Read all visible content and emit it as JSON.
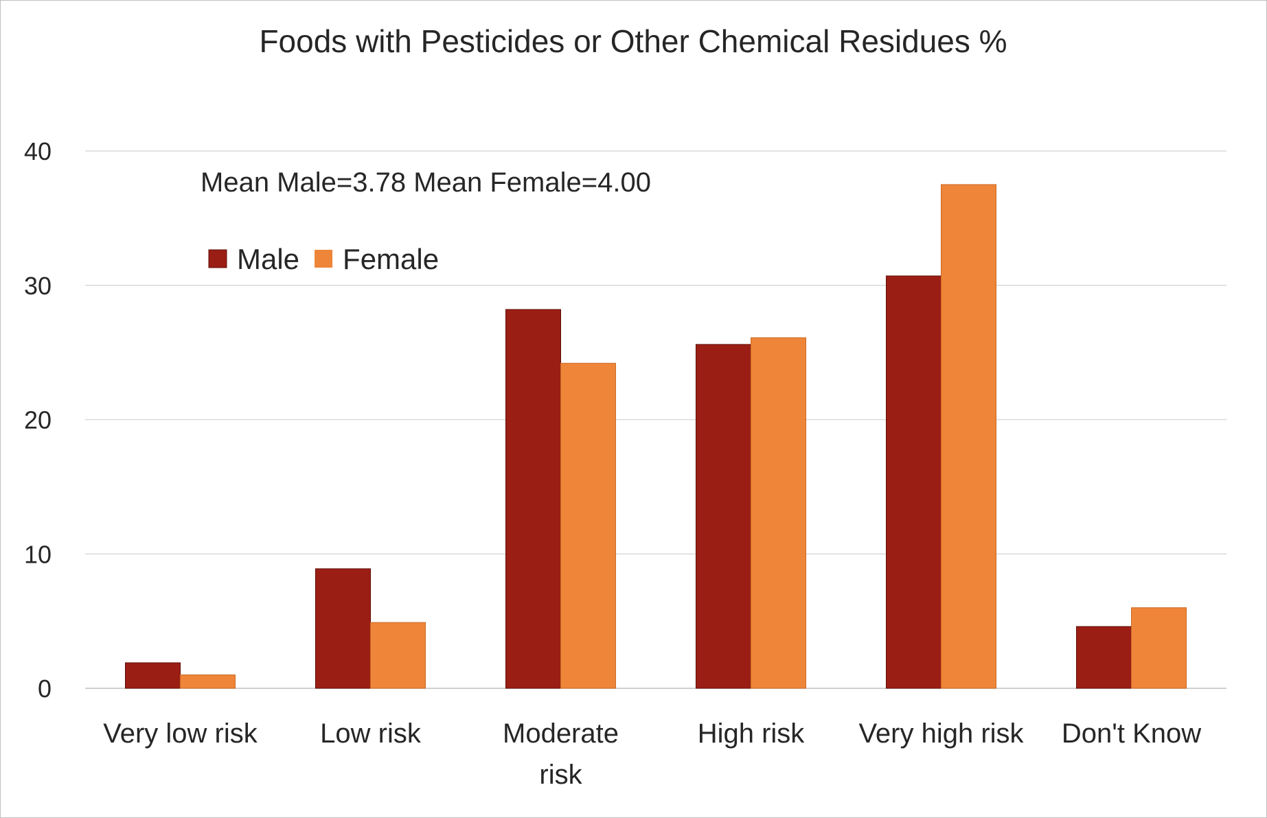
{
  "chart_data": {
    "type": "bar",
    "title": "Foods with Pesticides or Other Chemical Residues %",
    "annotation": "Mean Male=3.78 Mean Female=4.00",
    "xlabel": "",
    "ylabel": "",
    "ylim": [
      0,
      40
    ],
    "yticks": [
      0,
      10,
      20,
      30,
      40
    ],
    "grid": true,
    "legend_position": "top-left",
    "categories": [
      "Very low risk",
      "Low risk",
      "Moderate risk",
      "High risk",
      "Very high risk",
      "Don't Know"
    ],
    "series": [
      {
        "name": "Male",
        "color": "#9B1E14",
        "values": [
          1.9,
          8.9,
          28.2,
          25.6,
          30.7,
          4.6
        ]
      },
      {
        "name": "Female",
        "color": "#EE8539",
        "values": [
          1.0,
          4.9,
          24.2,
          26.1,
          37.5,
          6.0
        ]
      }
    ]
  }
}
